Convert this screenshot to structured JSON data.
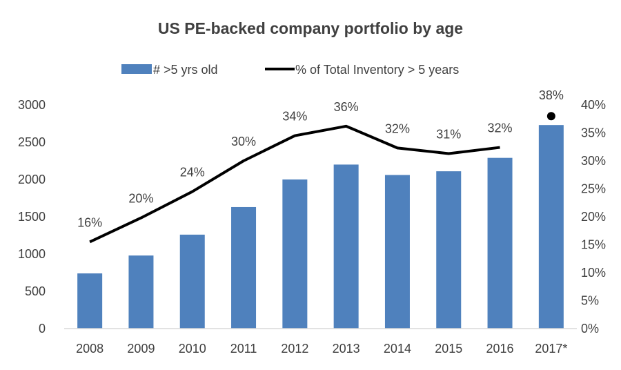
{
  "chart_data": {
    "type": "bar",
    "title": "US PE-backed company portfolio by age",
    "categories": [
      "2008",
      "2009",
      "2010",
      "2011",
      "2012",
      "2013",
      "2014",
      "2015",
      "2016",
      "2017*"
    ],
    "series": [
      {
        "name": "# >5 yrs old",
        "type": "bar",
        "axis": "left",
        "color": "#4f81bd",
        "values": [
          740,
          980,
          1260,
          1630,
          2000,
          2200,
          2060,
          2110,
          2290,
          2730
        ]
      },
      {
        "name": "% of Total Inventory > 5 years",
        "type": "line",
        "axis": "right",
        "color": "#000000",
        "values": [
          0.155,
          0.198,
          0.245,
          0.3,
          0.345,
          0.362,
          0.323,
          0.313,
          0.324,
          0.38
        ],
        "labels": [
          "16%",
          "20%",
          "24%",
          "30%",
          "34%",
          "36%",
          "32%",
          "31%",
          "32%",
          "38%"
        ],
        "last_point_marker_only": true
      }
    ],
    "y_left": {
      "min": 0,
      "max": 3000,
      "ticks": [
        "0",
        "500",
        "1000",
        "1500",
        "2000",
        "2500",
        "3000"
      ]
    },
    "y_right": {
      "min": 0,
      "max": 0.4,
      "ticks": [
        "0%",
        "5%",
        "10%",
        "15%",
        "20%",
        "25%",
        "30%",
        "35%",
        "40%"
      ]
    },
    "legend_position": "top",
    "grid": false
  }
}
